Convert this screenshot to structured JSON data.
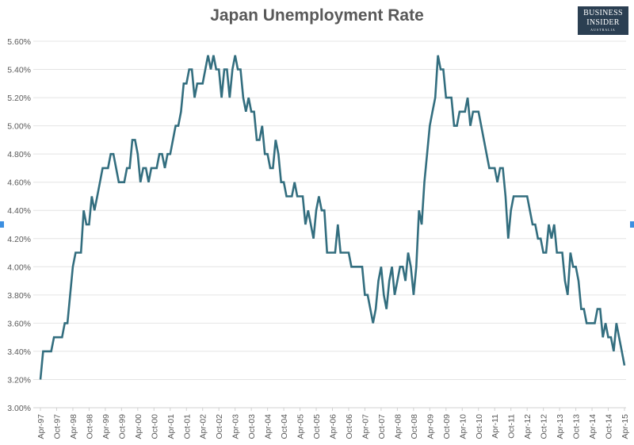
{
  "chart_data": {
    "type": "line",
    "title": "Japan Unemployment Rate",
    "xlabel": "",
    "ylabel": "",
    "x_start": "Apr-97",
    "x_end": "Apr-15",
    "x_interval": "monthly",
    "x_tick_labels": [
      "Apr-97",
      "Oct-97",
      "Apr-98",
      "Oct-98",
      "Apr-99",
      "Oct-99",
      "Apr-00",
      "Oct-00",
      "Apr-01",
      "Oct-01",
      "Apr-02",
      "Oct-02",
      "Apr-03",
      "Oct-03",
      "Apr-04",
      "Oct-04",
      "Apr-05",
      "Oct-05",
      "Apr-06",
      "Oct-06",
      "Apr-07",
      "Oct-07",
      "Apr-08",
      "Oct-08",
      "Apr-09",
      "Oct-09",
      "Apr-10",
      "Oct-10",
      "Apr-11",
      "Oct-11",
      "Apr-12",
      "Oct-12",
      "Apr-13",
      "Oct-13",
      "Apr-14",
      "Oct-14",
      "Apr-15"
    ],
    "y_tick_labels": [
      "3.00%",
      "3.20%",
      "3.40%",
      "3.60%",
      "3.80%",
      "4.00%",
      "4.20%",
      "4.40%",
      "4.60%",
      "4.80%",
      "5.00%",
      "5.20%",
      "5.40%",
      "5.60%"
    ],
    "ylim": [
      3.0,
      5.6
    ],
    "grid": true,
    "legend": "none",
    "line_color": "#336e7f",
    "values": [
      3.2,
      3.4,
      3.4,
      3.4,
      3.4,
      3.5,
      3.5,
      3.5,
      3.5,
      3.6,
      3.6,
      3.8,
      4.0,
      4.1,
      4.1,
      4.1,
      4.4,
      4.3,
      4.3,
      4.5,
      4.4,
      4.5,
      4.6,
      4.7,
      4.7,
      4.7,
      4.8,
      4.8,
      4.7,
      4.6,
      4.6,
      4.6,
      4.7,
      4.7,
      4.9,
      4.9,
      4.8,
      4.6,
      4.7,
      4.7,
      4.6,
      4.7,
      4.7,
      4.7,
      4.8,
      4.8,
      4.7,
      4.8,
      4.8,
      4.9,
      5.0,
      5.0,
      5.1,
      5.3,
      5.3,
      5.4,
      5.4,
      5.2,
      5.3,
      5.3,
      5.3,
      5.4,
      5.5,
      5.4,
      5.5,
      5.4,
      5.4,
      5.2,
      5.4,
      5.4,
      5.2,
      5.4,
      5.5,
      5.4,
      5.4,
      5.2,
      5.1,
      5.2,
      5.1,
      5.1,
      4.9,
      4.9,
      5.0,
      4.8,
      4.8,
      4.7,
      4.7,
      4.9,
      4.8,
      4.6,
      4.6,
      4.5,
      4.5,
      4.5,
      4.6,
      4.5,
      4.5,
      4.5,
      4.3,
      4.4,
      4.3,
      4.2,
      4.4,
      4.5,
      4.4,
      4.4,
      4.1,
      4.1,
      4.1,
      4.1,
      4.3,
      4.1,
      4.1,
      4.1,
      4.1,
      4.0,
      4.0,
      4.0,
      4.0,
      4.0,
      3.8,
      3.8,
      3.7,
      3.6,
      3.7,
      3.9,
      4.0,
      3.8,
      3.7,
      3.9,
      4.0,
      3.8,
      3.9,
      4.0,
      4.0,
      3.9,
      4.1,
      4.0,
      3.8,
      4.0,
      4.4,
      4.3,
      4.6,
      4.8,
      5.0,
      5.1,
      5.2,
      5.5,
      5.4,
      5.4,
      5.2,
      5.2,
      5.2,
      5.0,
      5.0,
      5.1,
      5.1,
      5.1,
      5.2,
      5.0,
      5.1,
      5.1,
      5.1,
      5.0,
      4.9,
      4.8,
      4.7,
      4.7,
      4.7,
      4.6,
      4.7,
      4.7,
      4.5,
      4.2,
      4.4,
      4.5,
      4.5,
      4.5,
      4.5,
      4.5,
      4.5,
      4.4,
      4.3,
      4.3,
      4.2,
      4.2,
      4.1,
      4.1,
      4.3,
      4.2,
      4.3,
      4.1,
      4.1,
      4.1,
      3.9,
      3.8,
      4.1,
      4.0,
      4.0,
      3.9,
      3.7,
      3.7,
      3.6,
      3.6,
      3.6,
      3.6,
      3.7,
      3.7,
      3.5,
      3.6,
      3.5,
      3.5,
      3.4,
      3.6,
      3.5,
      3.4,
      3.3
    ]
  },
  "logo": {
    "line1": "BUSINESS",
    "line2": "INSIDER",
    "line3": "AUSTRALIA"
  }
}
